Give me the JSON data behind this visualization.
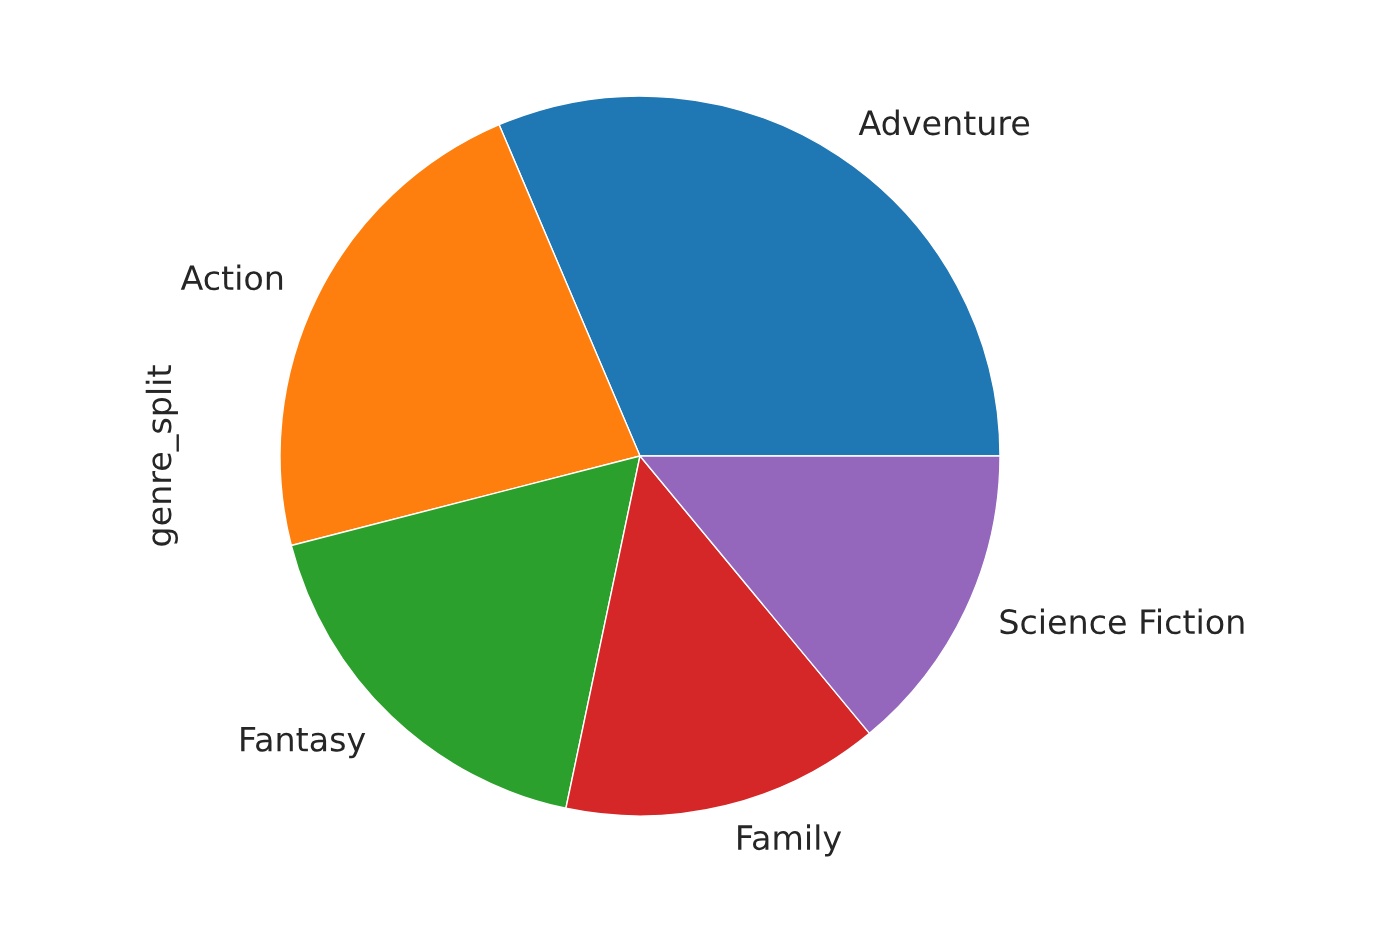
{
  "chart_data": {
    "type": "pie",
    "ylabel": "genre_split",
    "categories": [
      "Adventure",
      "Action",
      "Fantasy",
      "Family",
      "Science Fiction"
    ],
    "values": [
      31.4,
      22.6,
      17.7,
      14.3,
      14.0
    ],
    "colors": [
      "#1f77b4",
      "#ff7f0e",
      "#2ca02c",
      "#d62728",
      "#9467bd"
    ]
  }
}
